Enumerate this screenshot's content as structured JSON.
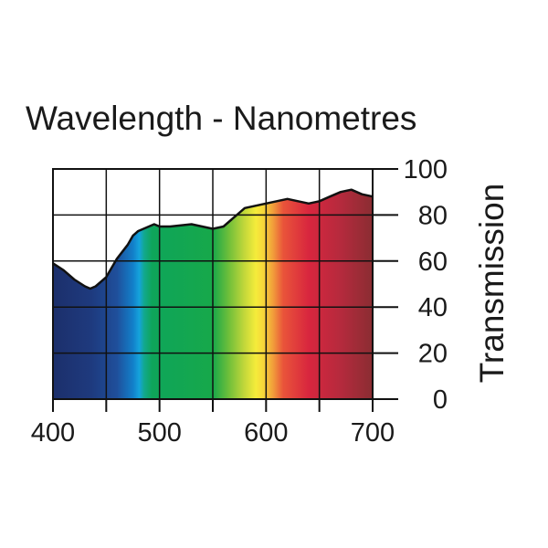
{
  "chart_data": {
    "type": "area",
    "title": "",
    "xlabel": "Wavelength - Nanometres",
    "ylabel": "Transmission",
    "xlim": [
      400,
      700
    ],
    "ylim": [
      0,
      100
    ],
    "x_ticks": [
      400,
      500,
      600,
      700
    ],
    "x_tick_labels": [
      "400",
      "500",
      "600",
      "700"
    ],
    "y_ticks": [
      0,
      20,
      40,
      60,
      80,
      100
    ],
    "y_tick_labels": [
      "0",
      "20",
      "40",
      "60",
      "80",
      "100"
    ],
    "grid": true,
    "y_axis_side": "right",
    "fill": "visible spectrum colours",
    "series": [
      {
        "x": [
          400,
          410,
          420,
          430,
          435,
          440,
          450,
          460,
          470,
          475,
          480,
          490,
          495,
          500,
          510,
          520,
          530,
          540,
          550,
          560,
          570,
          580,
          590,
          600,
          610,
          620,
          630,
          640,
          650,
          660,
          670,
          680,
          690,
          700
        ],
        "y": [
          59,
          56,
          52,
          49,
          48,
          49,
          53,
          61,
          67,
          71,
          73,
          75,
          76,
          75,
          75,
          75.5,
          76,
          75,
          74,
          75,
          79,
          83,
          84,
          85,
          86,
          87,
          86,
          85,
          86,
          88,
          90,
          91,
          89,
          88
        ]
      }
    ]
  }
}
